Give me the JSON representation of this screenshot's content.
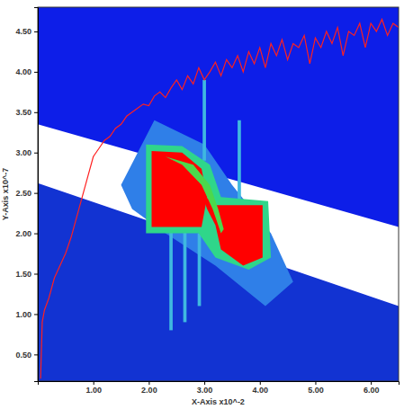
{
  "chart_data": {
    "type": "contour",
    "x_label": "X-Axis x10^-2",
    "y_label": "Y-Axis x10^-7",
    "xlim": [
      0,
      6.5
    ],
    "ylim": [
      0.17,
      4.8
    ],
    "xticks": [
      {
        "value": 1,
        "label": "1.00"
      },
      {
        "value": 2,
        "label": "2.00"
      },
      {
        "value": 3,
        "label": "3.00"
      },
      {
        "value": 4,
        "label": "4.00"
      },
      {
        "value": 5,
        "label": "5.00"
      },
      {
        "value": 6,
        "label": "6.00"
      }
    ],
    "yticks": [
      {
        "value": 0.5,
        "label": "0.50"
      },
      {
        "value": 1,
        "label": "1.00"
      },
      {
        "value": 1.5,
        "label": "1.50"
      },
      {
        "value": 2,
        "label": "2.00"
      },
      {
        "value": 2.5,
        "label": "2.50"
      },
      {
        "value": 3,
        "label": "3.00"
      },
      {
        "value": 3.5,
        "label": "3.50"
      },
      {
        "value": 4,
        "label": "4.00"
      },
      {
        "value": 4.5,
        "label": "4.50"
      }
    ],
    "regions": [
      {
        "color": "#0d1ee8",
        "x": [
          0,
          6.5,
          6.5,
          0
        ],
        "y": [
          4.8,
          4.8,
          0.17,
          0.17
        ]
      },
      {
        "color": "#1233d2",
        "x": [
          0,
          6.5,
          6.5,
          0
        ],
        "y": [
          2.62,
          1.1,
          0.17,
          0.17
        ]
      },
      {
        "color": "#ffffff",
        "x": [
          0,
          6.5,
          6.5,
          0
        ],
        "y": [
          3.35,
          2.08,
          1.1,
          2.62
        ]
      },
      {
        "color": "#2f7fe8",
        "x": [
          1.5,
          2.1,
          3.0,
          3.5,
          4.2,
          4.6,
          4.1,
          3.2,
          2.3,
          1.7
        ],
        "y": [
          2.6,
          3.4,
          3.1,
          2.6,
          2.0,
          1.4,
          1.1,
          1.6,
          2.0,
          2.3
        ]
      },
      {
        "color": "#3fb8e0",
        "x": [
          2.97,
          3.03,
          3.03,
          2.97
        ],
        "y": [
          3.9,
          3.9,
          2.9,
          2.9
        ]
      },
      {
        "color": "#3fb8e0",
        "x": [
          2.37,
          2.43,
          2.43,
          2.37
        ],
        "y": [
          2.1,
          2.1,
          0.8,
          0.8
        ]
      },
      {
        "color": "#3fb8e0",
        "x": [
          2.62,
          2.68,
          2.68,
          2.62
        ],
        "y": [
          2.1,
          2.1,
          0.9,
          0.9
        ]
      },
      {
        "color": "#3fb8e0",
        "x": [
          2.88,
          2.94,
          2.94,
          2.88
        ],
        "y": [
          2.0,
          2.0,
          1.1,
          1.1
        ]
      },
      {
        "color": "#3fb8e0",
        "x": [
          3.6,
          3.66,
          3.66,
          3.6
        ],
        "y": [
          3.4,
          3.4,
          2.4,
          2.4
        ]
      },
      {
        "color": "#2fd68a",
        "x": [
          1.95,
          2.6,
          3.1,
          3.3,
          4.15,
          4.2,
          3.8,
          3.2,
          2.9,
          1.95
        ],
        "y": [
          3.1,
          3.08,
          2.85,
          2.45,
          2.4,
          1.7,
          1.55,
          1.7,
          2.0,
          2.0
        ]
      },
      {
        "color": "#ff0000",
        "x": [
          2.05,
          2.6,
          2.95,
          3.05,
          2.95,
          2.05
        ],
        "y": [
          3.02,
          3.0,
          2.8,
          2.45,
          2.08,
          2.08
        ]
      },
      {
        "color": "#ff0000",
        "x": [
          2.95,
          3.2,
          4.05,
          4.05,
          3.7,
          3.3,
          3.2,
          3.05
        ],
        "y": [
          2.5,
          2.35,
          2.35,
          1.7,
          1.6,
          1.8,
          2.1,
          2.3
        ]
      },
      {
        "color": "#4cd84c",
        "x": [
          2.3,
          2.8,
          3.1,
          3.25,
          3.35,
          3.3,
          3.15,
          2.95,
          2.6
        ],
        "y": [
          2.95,
          2.85,
          2.6,
          2.3,
          2.05,
          2.0,
          2.3,
          2.6,
          2.85
        ]
      }
    ],
    "x": [
      0.05,
      0.08,
      0.12,
      0.2,
      0.3,
      0.4,
      0.5,
      0.6,
      0.7,
      0.8,
      0.9,
      1.0,
      1.1,
      1.2,
      1.3,
      1.4,
      1.5,
      1.6,
      1.7,
      1.8,
      1.9,
      2.0,
      2.1,
      2.2,
      2.3,
      2.4,
      2.5,
      2.6,
      2.7,
      2.8,
      2.9,
      3.0,
      3.1,
      3.2,
      3.3,
      3.4,
      3.5,
      3.6,
      3.7,
      3.8,
      3.9,
      4.0,
      4.1,
      4.2,
      4.3,
      4.4,
      4.5,
      4.6,
      4.7,
      4.8,
      4.9,
      5.0,
      5.1,
      5.2,
      5.3,
      5.4,
      5.5,
      5.6,
      5.7,
      5.8,
      5.9,
      6.0,
      6.1,
      6.2,
      6.3,
      6.4,
      6.5
    ],
    "series": [
      {
        "type": "line",
        "color": "#ff2020",
        "values": [
          0.2,
          0.9,
          1.05,
          1.2,
          1.45,
          1.6,
          1.75,
          1.95,
          2.2,
          2.45,
          2.7,
          2.95,
          3.05,
          3.15,
          3.2,
          3.3,
          3.35,
          3.45,
          3.5,
          3.55,
          3.6,
          3.58,
          3.7,
          3.75,
          3.68,
          3.8,
          3.9,
          3.78,
          3.95,
          3.85,
          4.05,
          3.9,
          4.0,
          4.12,
          3.95,
          4.15,
          4.05,
          4.2,
          4.0,
          4.25,
          4.1,
          4.3,
          4.05,
          4.35,
          4.2,
          4.4,
          4.15,
          4.35,
          4.3,
          4.45,
          4.1,
          4.42,
          4.3,
          4.5,
          4.35,
          4.55,
          4.2,
          4.5,
          4.45,
          4.6,
          4.3,
          4.6,
          4.5,
          4.65,
          4.45,
          4.6,
          4.55
        ]
      }
    ]
  }
}
